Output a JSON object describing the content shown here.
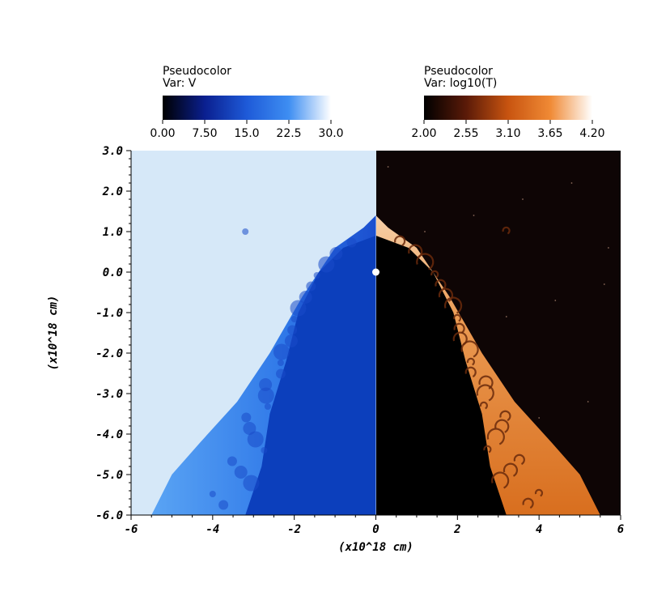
{
  "legends": [
    {
      "title": "Pseudocolor",
      "var": "Var: V",
      "ticks": [
        "0.00",
        "7.50",
        "15.0",
        "22.5",
        "30.0"
      ],
      "colors": [
        "#000000",
        "#0a1f8f",
        "#1e5ad8",
        "#3e8ef2",
        "#ffffff"
      ]
    },
    {
      "title": "Pseudocolor",
      "var": "Var: log10(T)",
      "ticks": [
        "2.00",
        "2.55",
        "3.10",
        "3.65",
        "4.20"
      ],
      "colors": [
        "#000000",
        "#5a1a08",
        "#c85410",
        "#f08a35",
        "#ffffff"
      ]
    }
  ],
  "chart_data": {
    "type": "heatmap",
    "title": "",
    "xlabel": "(x10^18 cm)",
    "ylabel": "(x10^18 cm)",
    "xlim": [
      -6,
      6
    ],
    "ylim": [
      -6,
      3
    ],
    "x_ticks": [
      "-6",
      "-4",
      "-2",
      "0",
      "2",
      "4",
      "6"
    ],
    "y_ticks": [
      "3.0",
      "2.0",
      "1.0",
      "0.0",
      "-1.0",
      "-2.0",
      "-3.0",
      "-4.0",
      "-5.0",
      "-6.0"
    ],
    "panels": [
      {
        "side": "left",
        "variable": "V",
        "range": [
          0,
          30
        ]
      },
      {
        "side": "right",
        "variable": "log10(T)",
        "range": [
          2.0,
          4.2
        ]
      }
    ],
    "star_position": [
      0,
      0
    ],
    "shell_outline": [
      [
        0,
        1.4
      ],
      [
        0.3,
        1.1
      ],
      [
        1.0,
        0.6
      ],
      [
        1.8,
        -0.6
      ],
      [
        2.6,
        -2.0
      ],
      [
        3.4,
        -3.2
      ],
      [
        4.3,
        -4.2
      ],
      [
        5.0,
        -5.0
      ],
      [
        5.5,
        -6.0
      ]
    ],
    "inner_outline": [
      [
        0,
        0.9
      ],
      [
        0.8,
        0.6
      ],
      [
        1.4,
        0.0
      ],
      [
        1.9,
        -1.0
      ],
      [
        2.2,
        -2.2
      ],
      [
        2.6,
        -3.5
      ],
      [
        2.8,
        -4.8
      ],
      [
        3.2,
        -6.0
      ]
    ],
    "colors": {
      "v_background": "#d6e8f8",
      "v_interior": "#0c3fbc",
      "v_shell": "#2f78e8",
      "t_background": "#0e0505",
      "t_interior": "#000000",
      "t_shell": "#e07a2a"
    }
  }
}
